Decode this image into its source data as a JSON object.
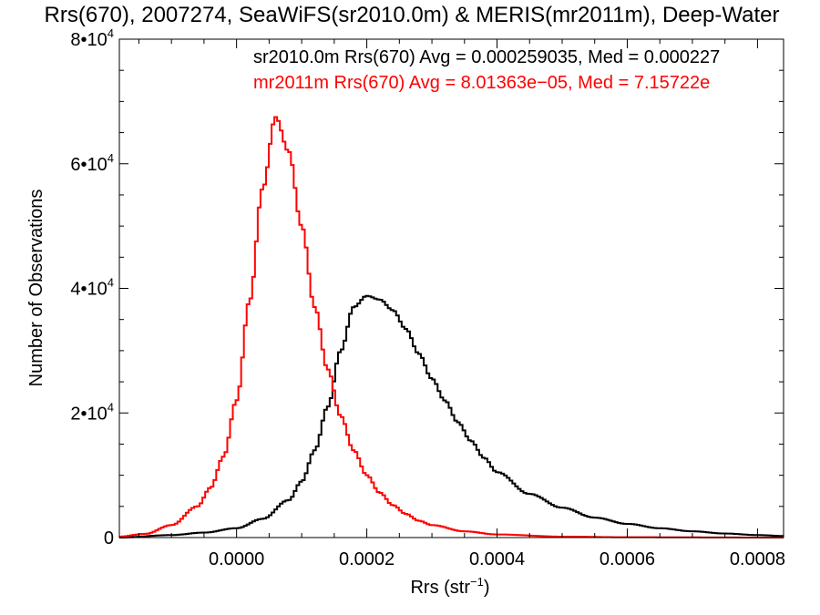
{
  "chart_data": {
    "type": "histogram",
    "title": "Rrs(670), 2007274, SeaWiFS(sr2010.0m) & MERIS(mr2011m), Deep-Water",
    "xlabel": "Rrs (str",
    "xlabel_sup": "−1",
    "xlabel_close": ")",
    "ylabel": "Number of Observations",
    "xlim": [
      -0.00018,
      0.00084
    ],
    "ylim": [
      0,
      80000
    ],
    "x_ticks": [
      0.0,
      0.0002,
      0.0004,
      0.0006,
      0.0008
    ],
    "x_tick_labels": [
      "0.0000",
      "0.0002",
      "0.0004",
      "0.0006",
      "0.0008"
    ],
    "y_ticks": [
      0,
      20000,
      40000,
      60000,
      80000
    ],
    "y_tick_labels": [
      {
        "mant": "0",
        "exp": ""
      },
      {
        "mant": "2•10",
        "exp": "4"
      },
      {
        "mant": "4•10",
        "exp": "4"
      },
      {
        "mant": "6•10",
        "exp": "4"
      },
      {
        "mant": "8•10",
        "exp": "4"
      }
    ],
    "series": [
      {
        "name": "sr2010.0m",
        "color": "#000000",
        "annotation": "sr2010.0m Rrs(670) Avg = 0.000259035, Med = 0.000227",
        "points": [
          [
            -0.00018,
            0
          ],
          [
            -0.0001,
            400
          ],
          [
            -5e-05,
            800
          ],
          [
            0.0,
            1500
          ],
          [
            4e-05,
            3000
          ],
          [
            8e-05,
            6000
          ],
          [
            0.0001,
            9000
          ],
          [
            0.00012,
            14000
          ],
          [
            0.00014,
            21000
          ],
          [
            0.00016,
            30000
          ],
          [
            0.00018,
            37000
          ],
          [
            0.0002,
            38800
          ],
          [
            0.00022,
            38200
          ],
          [
            0.00024,
            36500
          ],
          [
            0.00026,
            33500
          ],
          [
            0.00028,
            29500
          ],
          [
            0.0003,
            25500
          ],
          [
            0.00032,
            22000
          ],
          [
            0.00034,
            18500
          ],
          [
            0.00036,
            15500
          ],
          [
            0.00038,
            12800
          ],
          [
            0.0004,
            10500
          ],
          [
            0.00045,
            7000
          ],
          [
            0.0005,
            4800
          ],
          [
            0.00055,
            3200
          ],
          [
            0.0006,
            2200
          ],
          [
            0.00065,
            1500
          ],
          [
            0.0007,
            1000
          ],
          [
            0.00075,
            650
          ],
          [
            0.0008,
            400
          ],
          [
            0.00084,
            250
          ]
        ]
      },
      {
        "name": "mr2011m",
        "color": "#ff0000",
        "annotation": "mr2011m Rrs(670) Avg = 8.01363e−05, Med = 7.15722e",
        "points": [
          [
            -0.00018,
            150
          ],
          [
            -0.00014,
            600
          ],
          [
            -0.0001,
            2000
          ],
          [
            -6e-05,
            5000
          ],
          [
            -4e-05,
            8000
          ],
          [
            -2e-05,
            13000
          ],
          [
            0.0,
            22000
          ],
          [
            2e-05,
            38000
          ],
          [
            4e-05,
            56000
          ],
          [
            6e-05,
            67500
          ],
          [
            8e-05,
            62000
          ],
          [
            0.0001,
            50000
          ],
          [
            0.00012,
            37000
          ],
          [
            0.00014,
            27000
          ],
          [
            0.00016,
            19500
          ],
          [
            0.00018,
            14000
          ],
          [
            0.0002,
            10000
          ],
          [
            0.00022,
            7200
          ],
          [
            0.00024,
            5200
          ],
          [
            0.00026,
            3800
          ],
          [
            0.00028,
            2700
          ],
          [
            0.0003,
            2000
          ],
          [
            0.00035,
            1000
          ],
          [
            0.0004,
            500
          ],
          [
            0.0005,
            150
          ],
          [
            0.0006,
            50
          ],
          [
            0.00084,
            0
          ]
        ]
      }
    ]
  }
}
